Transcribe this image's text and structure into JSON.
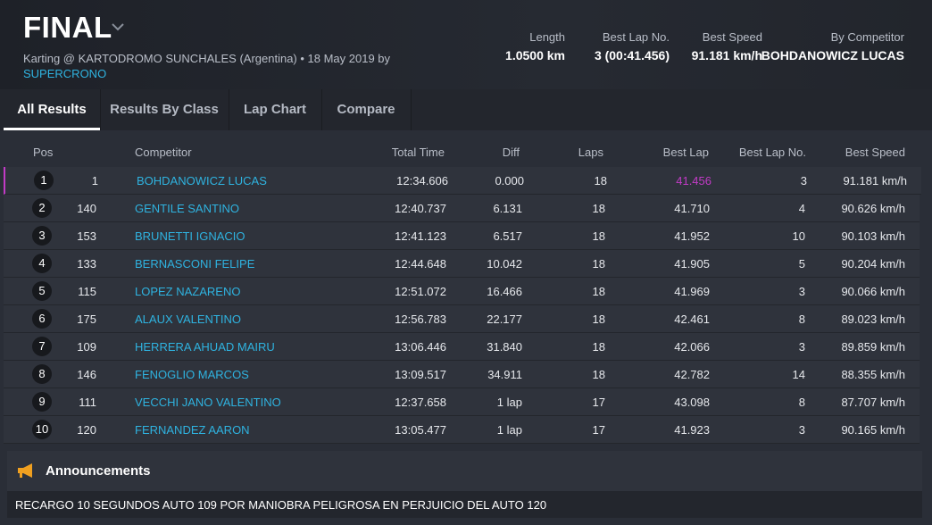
{
  "header": {
    "title": "FINAL",
    "subtitle": "Karting @ KARTODROMO SUNCHALES (Argentina) • 18 May 2019 by",
    "organizer": "SUPERCRONO"
  },
  "stats": [
    {
      "label": "Length",
      "value": "1.0500 km"
    },
    {
      "label": "Best Lap No.",
      "value": "3 (00:41.456)"
    },
    {
      "label": "Best Speed",
      "value": "91.181 km/h"
    },
    {
      "label": "By Competitor",
      "value": "BOHDANOWICZ LUCAS"
    }
  ],
  "tabs": [
    "All Results",
    "Results By Class",
    "Lap Chart",
    "Compare"
  ],
  "table": {
    "columns": [
      "Pos",
      "Competitor",
      "Total Time",
      "Diff",
      "Laps",
      "Best Lap",
      "Best Lap No.",
      "Best Speed"
    ],
    "rows": [
      [
        1,
        1,
        "BOHDANOWICZ LUCAS",
        "12:34.606",
        "0.000",
        18,
        "41.456",
        3,
        "91.181 km/h"
      ],
      [
        2,
        140,
        "GENTILE SANTINO",
        "12:40.737",
        "6.131",
        18,
        "41.710",
        4,
        "90.626 km/h"
      ],
      [
        3,
        153,
        "BRUNETTI IGNACIO",
        "12:41.123",
        "6.517",
        18,
        "41.952",
        10,
        "90.103 km/h"
      ],
      [
        4,
        133,
        "BERNASCONI FELIPE",
        "12:44.648",
        "10.042",
        18,
        "41.905",
        5,
        "90.204 km/h"
      ],
      [
        5,
        115,
        "LOPEZ NAZARENO",
        "12:51.072",
        "16.466",
        18,
        "41.969",
        3,
        "90.066 km/h"
      ],
      [
        6,
        175,
        "ALAUX VALENTINO",
        "12:56.783",
        "22.177",
        18,
        "42.461",
        8,
        "89.023 km/h"
      ],
      [
        7,
        109,
        "HERRERA AHUAD MAIRU",
        "13:06.446",
        "31.840",
        18,
        "42.066",
        3,
        "89.859 km/h"
      ],
      [
        8,
        146,
        "FENOGLIO MARCOS",
        "13:09.517",
        "34.911",
        18,
        "42.782",
        14,
        "88.355 km/h"
      ],
      [
        9,
        111,
        "VECCHI JANO VALENTINO",
        "12:37.658",
        "1 lap",
        17,
        "43.098",
        8,
        "87.707 km/h"
      ],
      [
        10,
        120,
        "FERNANDEZ AARON",
        "13:05.477",
        "1 lap",
        17,
        "41.923",
        3,
        "90.165 km/h"
      ]
    ]
  },
  "announcements": {
    "title": "Announcements",
    "items": [
      "RECARGO 10 SEGUNDOS AUTO 109 POR MANIOBRA PELIGROSA EN PERJUICIO DEL AUTO 120"
    ]
  }
}
